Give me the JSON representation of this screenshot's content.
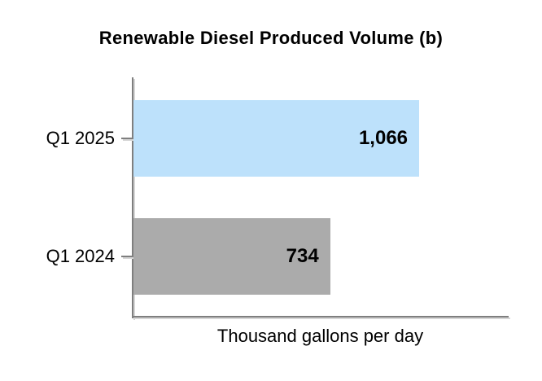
{
  "chart_data": {
    "type": "bar",
    "orientation": "horizontal",
    "title": "Renewable Diesel Produced Volume (b)",
    "categories": [
      "Q1 2025",
      "Q1 2024"
    ],
    "values": [
      1066,
      734
    ],
    "value_labels": [
      "1,066",
      "734"
    ],
    "xlabel": "Thousand gallons per day",
    "ylabel": "",
    "xlim": [
      0,
      1400
    ],
    "grid": false,
    "legend": false,
    "bar_colors": [
      "#BDE1FB",
      "#ABABAB"
    ],
    "axis_color": "#7F7F7F",
    "axis_shadow_color": "#D6D6D6",
    "value_label_position": "inside-end",
    "background_color": "#FFFFFF"
  }
}
